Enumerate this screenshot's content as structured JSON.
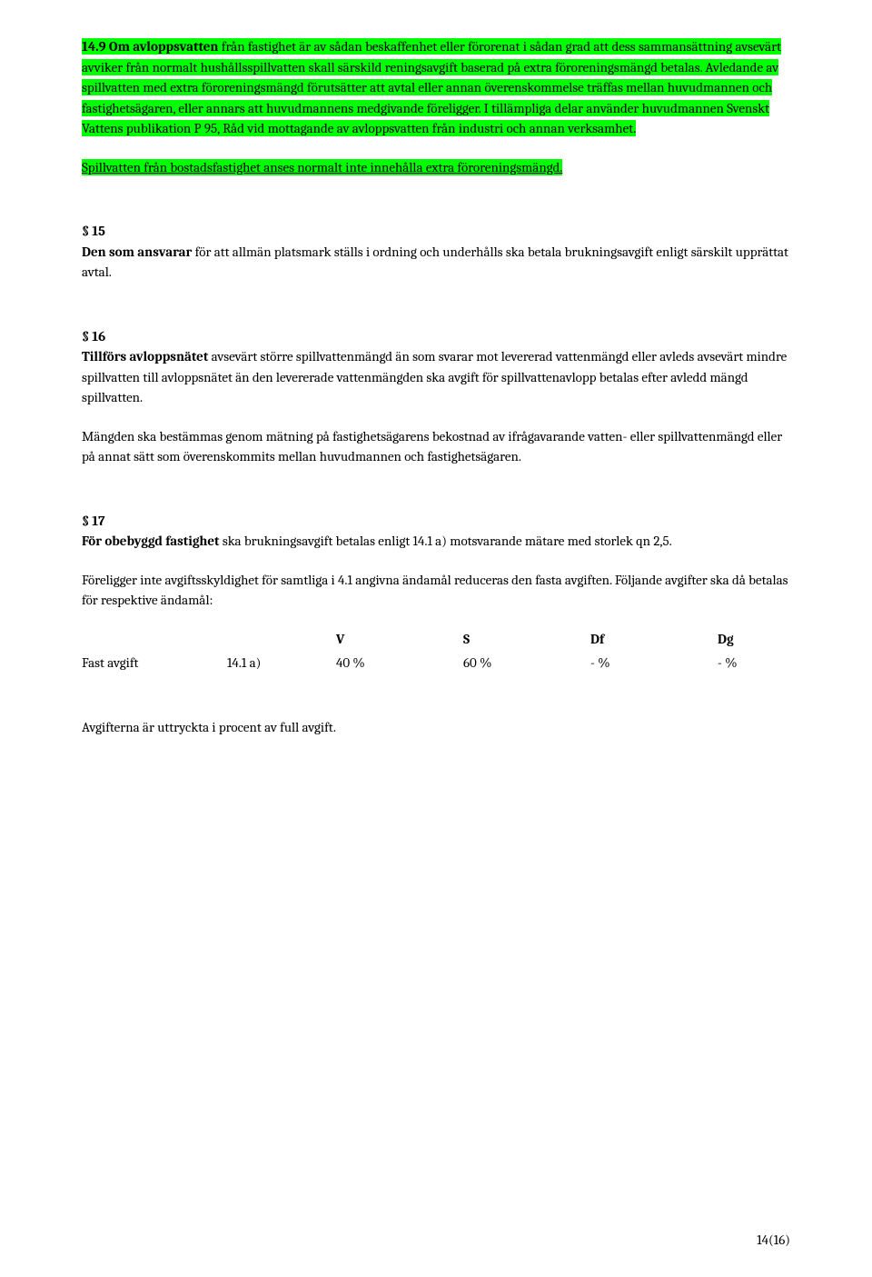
{
  "p14_9": {
    "part1_bold": "14.9 Om avloppsvatten",
    "part1_rest": " från fastighet är av sådan beskaffenhet eller förorenat i sådan grad att dess sammansättning avsevärt avviker från normalt hushållsspillvatten skall särskild reningsavgift baserad på extra föroreningsmängd betalas. Avledande av spillvatten med extra föroreningsmängd förutsätter att avtal eller annan överenskommelse träffas mellan huvudmannen och fastighetsägaren, eller annars att huvudmannens medgivande föreligger. I tillämpliga delar använder huvudmannen Svenskt Vattens publikation P 95, Råd vid mottagande av avloppsvatten från industri och annan verksamhet."
  },
  "p14_9_sub": "Spillvatten från bostadsfastighet anses normalt inte innehålla extra föroreningsmängd.",
  "s15": {
    "head": "§ 15",
    "bold": "Den som ansvarar",
    "rest": " för att allmän platsmark ställs i ordning och underhålls ska betala brukningsavgift enligt särskilt upprättat avtal."
  },
  "s16": {
    "head": "§ 16",
    "bold": "Tillförs avloppsnätet",
    "rest": " avsevärt större spillvattenmängd än som svarar mot levererad vattenmängd eller avleds avsevärt mindre spillvatten till avloppsnätet än den levererade vattenmängden ska avgift för spillvattenavlopp betalas efter avledd mängd spillvatten.",
    "p2": "Mängden ska bestämmas genom mätning på fastighetsägarens bekostnad av ifrågavarande vatten- eller spillvattenmängd eller på annat sätt som överenskommits mellan huvudmannen och fastighetsägaren."
  },
  "s17": {
    "head": "§ 17",
    "bold": "För obebyggd fastighet",
    "rest": " ska brukningsavgift betalas enligt 14.1 a) motsvarande mätare med storlek qn 2,5.",
    "p2": "Föreligger inte avgiftsskyldighet för samtliga i 4.1 angivna ändamål reduceras den fasta avgiften. Följande avgifter ska då betalas för respektive ändamål:"
  },
  "table": {
    "headers": {
      "v": "V",
      "s": "S",
      "df": "Df",
      "dg": "Dg"
    },
    "row": {
      "label": "Fast avgift",
      "ref": "14.1 a)",
      "v": "40 %",
      "s": "60 %",
      "df": "- %",
      "dg": "- %"
    }
  },
  "footnote": "Avgifterna är uttryckta i procent av full avgift.",
  "page": "14(16)"
}
